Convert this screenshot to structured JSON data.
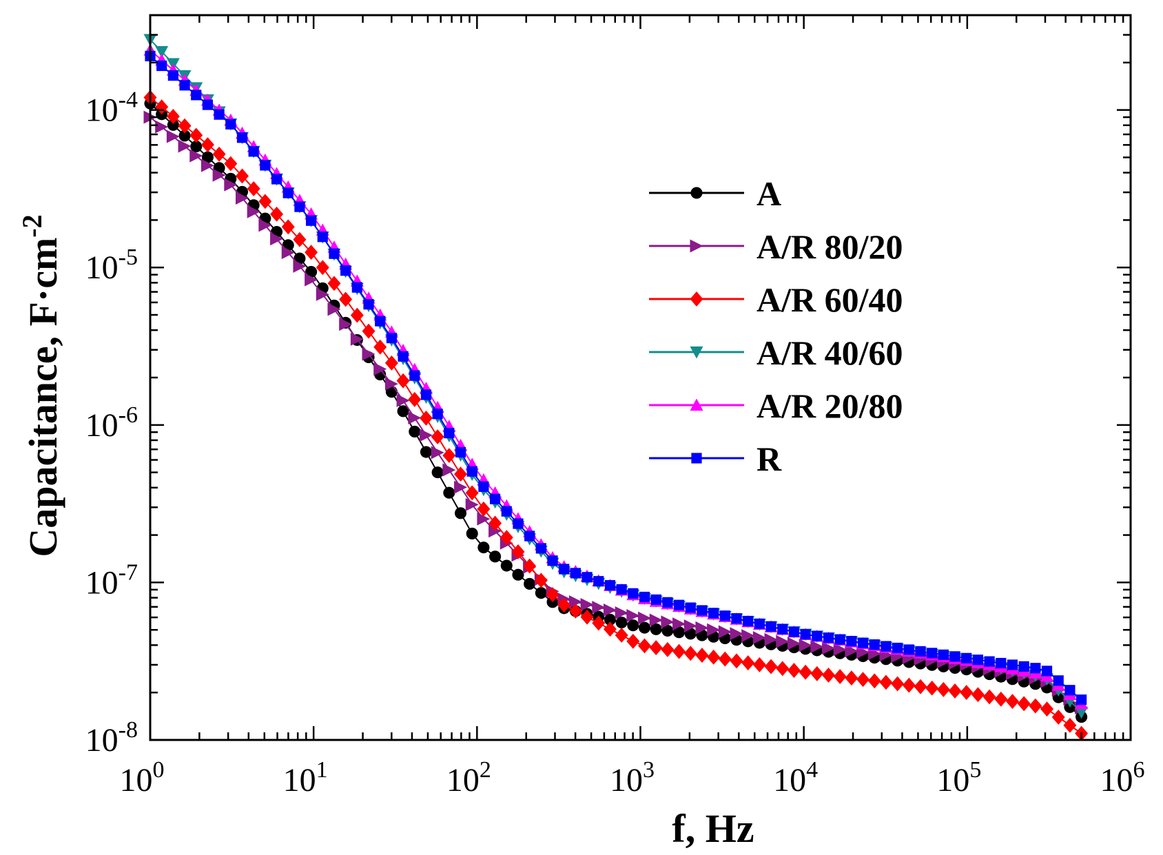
{
  "chart_data": {
    "type": "scatter",
    "title": "",
    "xlabel": "f, Hz",
    "ylabel": "Capacitance, F·cm",
    "ylabel_sup": "-2",
    "xscale": "log",
    "yscale": "log",
    "xlim": [
      1,
      1000000
    ],
    "ylim": [
      1e-08,
      0.0004
    ],
    "grid": false,
    "legend_position": "center-right",
    "x_ticks": [
      {
        "value": 1,
        "base": "10",
        "exp": "0"
      },
      {
        "value": 10,
        "base": "10",
        "exp": "1"
      },
      {
        "value": 100,
        "base": "10",
        "exp": "2"
      },
      {
        "value": 1000,
        "base": "10",
        "exp": "3"
      },
      {
        "value": 10000,
        "base": "10",
        "exp": "4"
      },
      {
        "value": 100000,
        "base": "10",
        "exp": "5"
      },
      {
        "value": 1000000,
        "base": "10",
        "exp": "6"
      }
    ],
    "y_ticks": [
      {
        "value": 1e-08,
        "base": "10",
        "exp": "-8"
      },
      {
        "value": 1e-07,
        "base": "10",
        "exp": "-7"
      },
      {
        "value": 1e-06,
        "base": "10",
        "exp": "-6"
      },
      {
        "value": 1e-05,
        "base": "10",
        "exp": "-5"
      },
      {
        "value": 0.0001,
        "base": "10",
        "exp": "-4"
      }
    ],
    "x_range_hz": [
      1,
      500000
    ],
    "series": [
      {
        "name": "A",
        "color": "#000000",
        "marker": "circle",
        "x": [
          1,
          3.16,
          10,
          31.6,
          100,
          316,
          1000,
          10000,
          100000,
          300000,
          500000
        ],
        "y": [
          0.00011,
          3.6e-05,
          9e-06,
          1.5e-06,
          1.8e-07,
          7e-08,
          5.2e-08,
          3.8e-08,
          2.8e-08,
          2.2e-08,
          1.4e-08
        ]
      },
      {
        "name": "A/R 80/20",
        "color": "#8B1A8B",
        "marker": "triangle-right",
        "x": [
          1,
          3.16,
          10,
          31.6,
          100,
          316,
          1000,
          10000,
          100000,
          300000,
          500000
        ],
        "y": [
          9e-05,
          3.3e-05,
          8e-06,
          1.7e-06,
          2.8e-07,
          8e-08,
          6e-08,
          4e-08,
          3e-08,
          2.4e-08,
          1.6e-08
        ]
      },
      {
        "name": "A/R 60/40",
        "color": "#FF0000",
        "marker": "diamond",
        "x": [
          1,
          3.16,
          10,
          31.6,
          100,
          316,
          1000,
          10000,
          100000,
          300000,
          500000
        ],
        "y": [
          0.00012,
          4.5e-05,
          1.2e-05,
          2.3e-06,
          3.3e-07,
          7.5e-08,
          4e-08,
          2.7e-08,
          2e-08,
          1.6e-08,
          1.1e-08
        ]
      },
      {
        "name": "A/R 40/60",
        "color": "#138D8D",
        "marker": "triangle-down",
        "x": [
          1,
          3.16,
          10,
          31.6,
          100,
          316,
          1000,
          10000,
          100000,
          300000,
          500000
        ],
        "y": [
          0.00028,
          8e-05,
          1.9e-05,
          3.2e-06,
          4.3e-07,
          1.2e-07,
          8e-08,
          4.7e-08,
          3.2e-08,
          2.5e-08,
          1.5e-08
        ]
      },
      {
        "name": "A/R 20/80",
        "color": "#FF00FF",
        "marker": "triangle-up",
        "x": [
          1,
          3.16,
          10,
          31.6,
          100,
          316,
          1000,
          10000,
          100000,
          300000,
          500000
        ],
        "y": [
          0.00024,
          8.5e-05,
          2.1e-05,
          3.6e-06,
          5e-07,
          1.3e-07,
          8e-08,
          4.7e-08,
          3.2e-08,
          2.6e-08,
          1.7e-08
        ]
      },
      {
        "name": "R",
        "color": "#0000FF",
        "marker": "square",
        "x": [
          1,
          3.16,
          10,
          31.6,
          100,
          316,
          1000,
          10000,
          100000,
          300000,
          500000
        ],
        "y": [
          0.00022,
          8e-05,
          1.9e-05,
          3.3e-06,
          4.5e-07,
          1.25e-07,
          8.2e-08,
          4.7e-08,
          3.3e-08,
          2.8e-08,
          1.8e-08
        ]
      }
    ]
  }
}
